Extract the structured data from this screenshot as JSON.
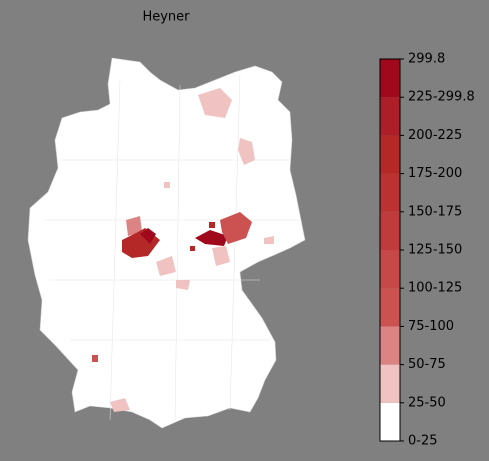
{
  "map": {
    "title": "Heyner",
    "colorbar": {
      "labels": [
        "0-25",
        "25-50",
        "50-75",
        "75-100",
        "100-125",
        "125-150",
        "150-175",
        "175-200",
        "200-225",
        "225-299.8",
        "299.8"
      ],
      "colors": [
        "#ffffff",
        "#f0c2c2",
        "#dc8484",
        "#cc5252",
        "#c64848",
        "#c03c3c",
        "#ba3232",
        "#b42828",
        "#ac1e28",
        "#a0081c"
      ]
    }
  }
}
